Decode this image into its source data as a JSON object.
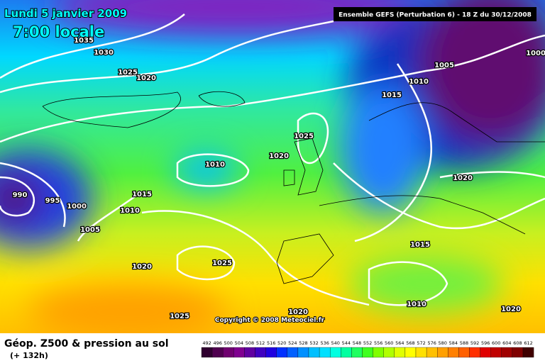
{
  "header": {
    "date": "Lundi 5 janvier 2009",
    "time": "7:00 locale",
    "model": "Ensemble GEFS (Perturbation 6)  - 18 Z du 30/12/2008"
  },
  "map": {
    "isobar_labels": [
      1035,
      1030,
      1025,
      1020,
      1005,
      1010,
      1015,
      1000,
      1025,
      1020,
      1010,
      1020,
      990,
      995,
      1000,
      1015,
      1010,
      1005,
      1020,
      1025,
      1015,
      1010,
      1025,
      1020,
      1020
    ],
    "copyright": "Copyright © 2008 Meteociel.fr"
  },
  "footer": {
    "title": "Géop. Z500 & pression au sol",
    "lead": "(+ 132h)"
  },
  "colorbar": {
    "labels": [
      492,
      496,
      500,
      504,
      508,
      512,
      516,
      520,
      524,
      528,
      532,
      536,
      540,
      544,
      548,
      552,
      556,
      560,
      564,
      568,
      572,
      576,
      580,
      584,
      588,
      592,
      596,
      600,
      604,
      608,
      612
    ]
  }
}
